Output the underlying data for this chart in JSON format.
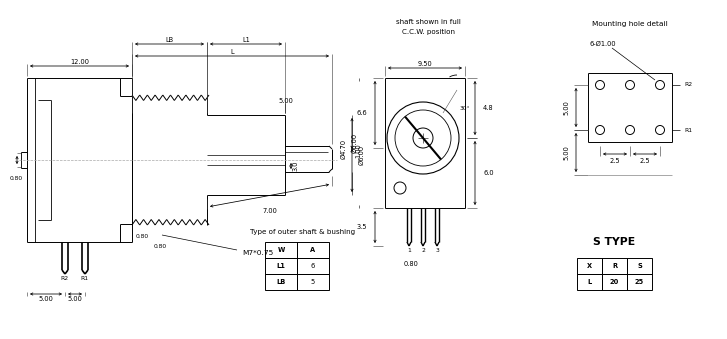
{
  "bg_color": "#ffffff",
  "line_color": "#000000",
  "font_size": 5.5,
  "small_font": 4.8,
  "table1_title": "Type of outer shaft & bushing",
  "table1_headers": [
    "W",
    "A"
  ],
  "table1_rows": [
    [
      "L1",
      "6"
    ],
    [
      "LB",
      "5"
    ]
  ],
  "table2_title": "S TYPE",
  "table2_headers": [
    "X",
    "R",
    "S"
  ],
  "table2_rows": [
    [
      "L",
      "20",
      "25"
    ]
  ],
  "ann": {
    "dim_12": "12.00",
    "dim_L": "L",
    "dim_LB": "LB",
    "dim_L1": "L1",
    "dim_5_00": "5.00",
    "dim_4_70": "Ø4.70",
    "dim_6_00": "Ø6.00",
    "dim_3_0": "3.0",
    "dim_7_00": "7.00",
    "dim_1_00": "1.00",
    "dim_M7": "M7*0.75",
    "dim_0_80a": "0.80",
    "dim_0_80b": "0.80",
    "dim_0_80c": "0.80",
    "dim_5_00a": "5.00",
    "dim_5_00b": "5.00",
    "dim_R2": "R2",
    "dim_R1": "R1",
    "shaft_text1": "shaft shown in full",
    "shaft_text2": "C.C.W. position",
    "dim_9_50": "9.50",
    "dim_30": "30°",
    "dim_4_8": "4.8",
    "dim_6_6": "6.6",
    "dim_6_0": "6.0",
    "dim_3_5": "3.5",
    "dim_0_80d": "0.80",
    "pin1": "1",
    "pin2": "2",
    "pin3": "3",
    "mount_title": "Mounting hole detail",
    "dim_6x1": "6-Ø1.00",
    "dim_5_00c": "5.00",
    "dim_5_00d": "5.00",
    "dim_2_5a": "2.5",
    "dim_2_5b": "2.5",
    "dim_R2b": "R2",
    "dim_R1b": "R1"
  }
}
